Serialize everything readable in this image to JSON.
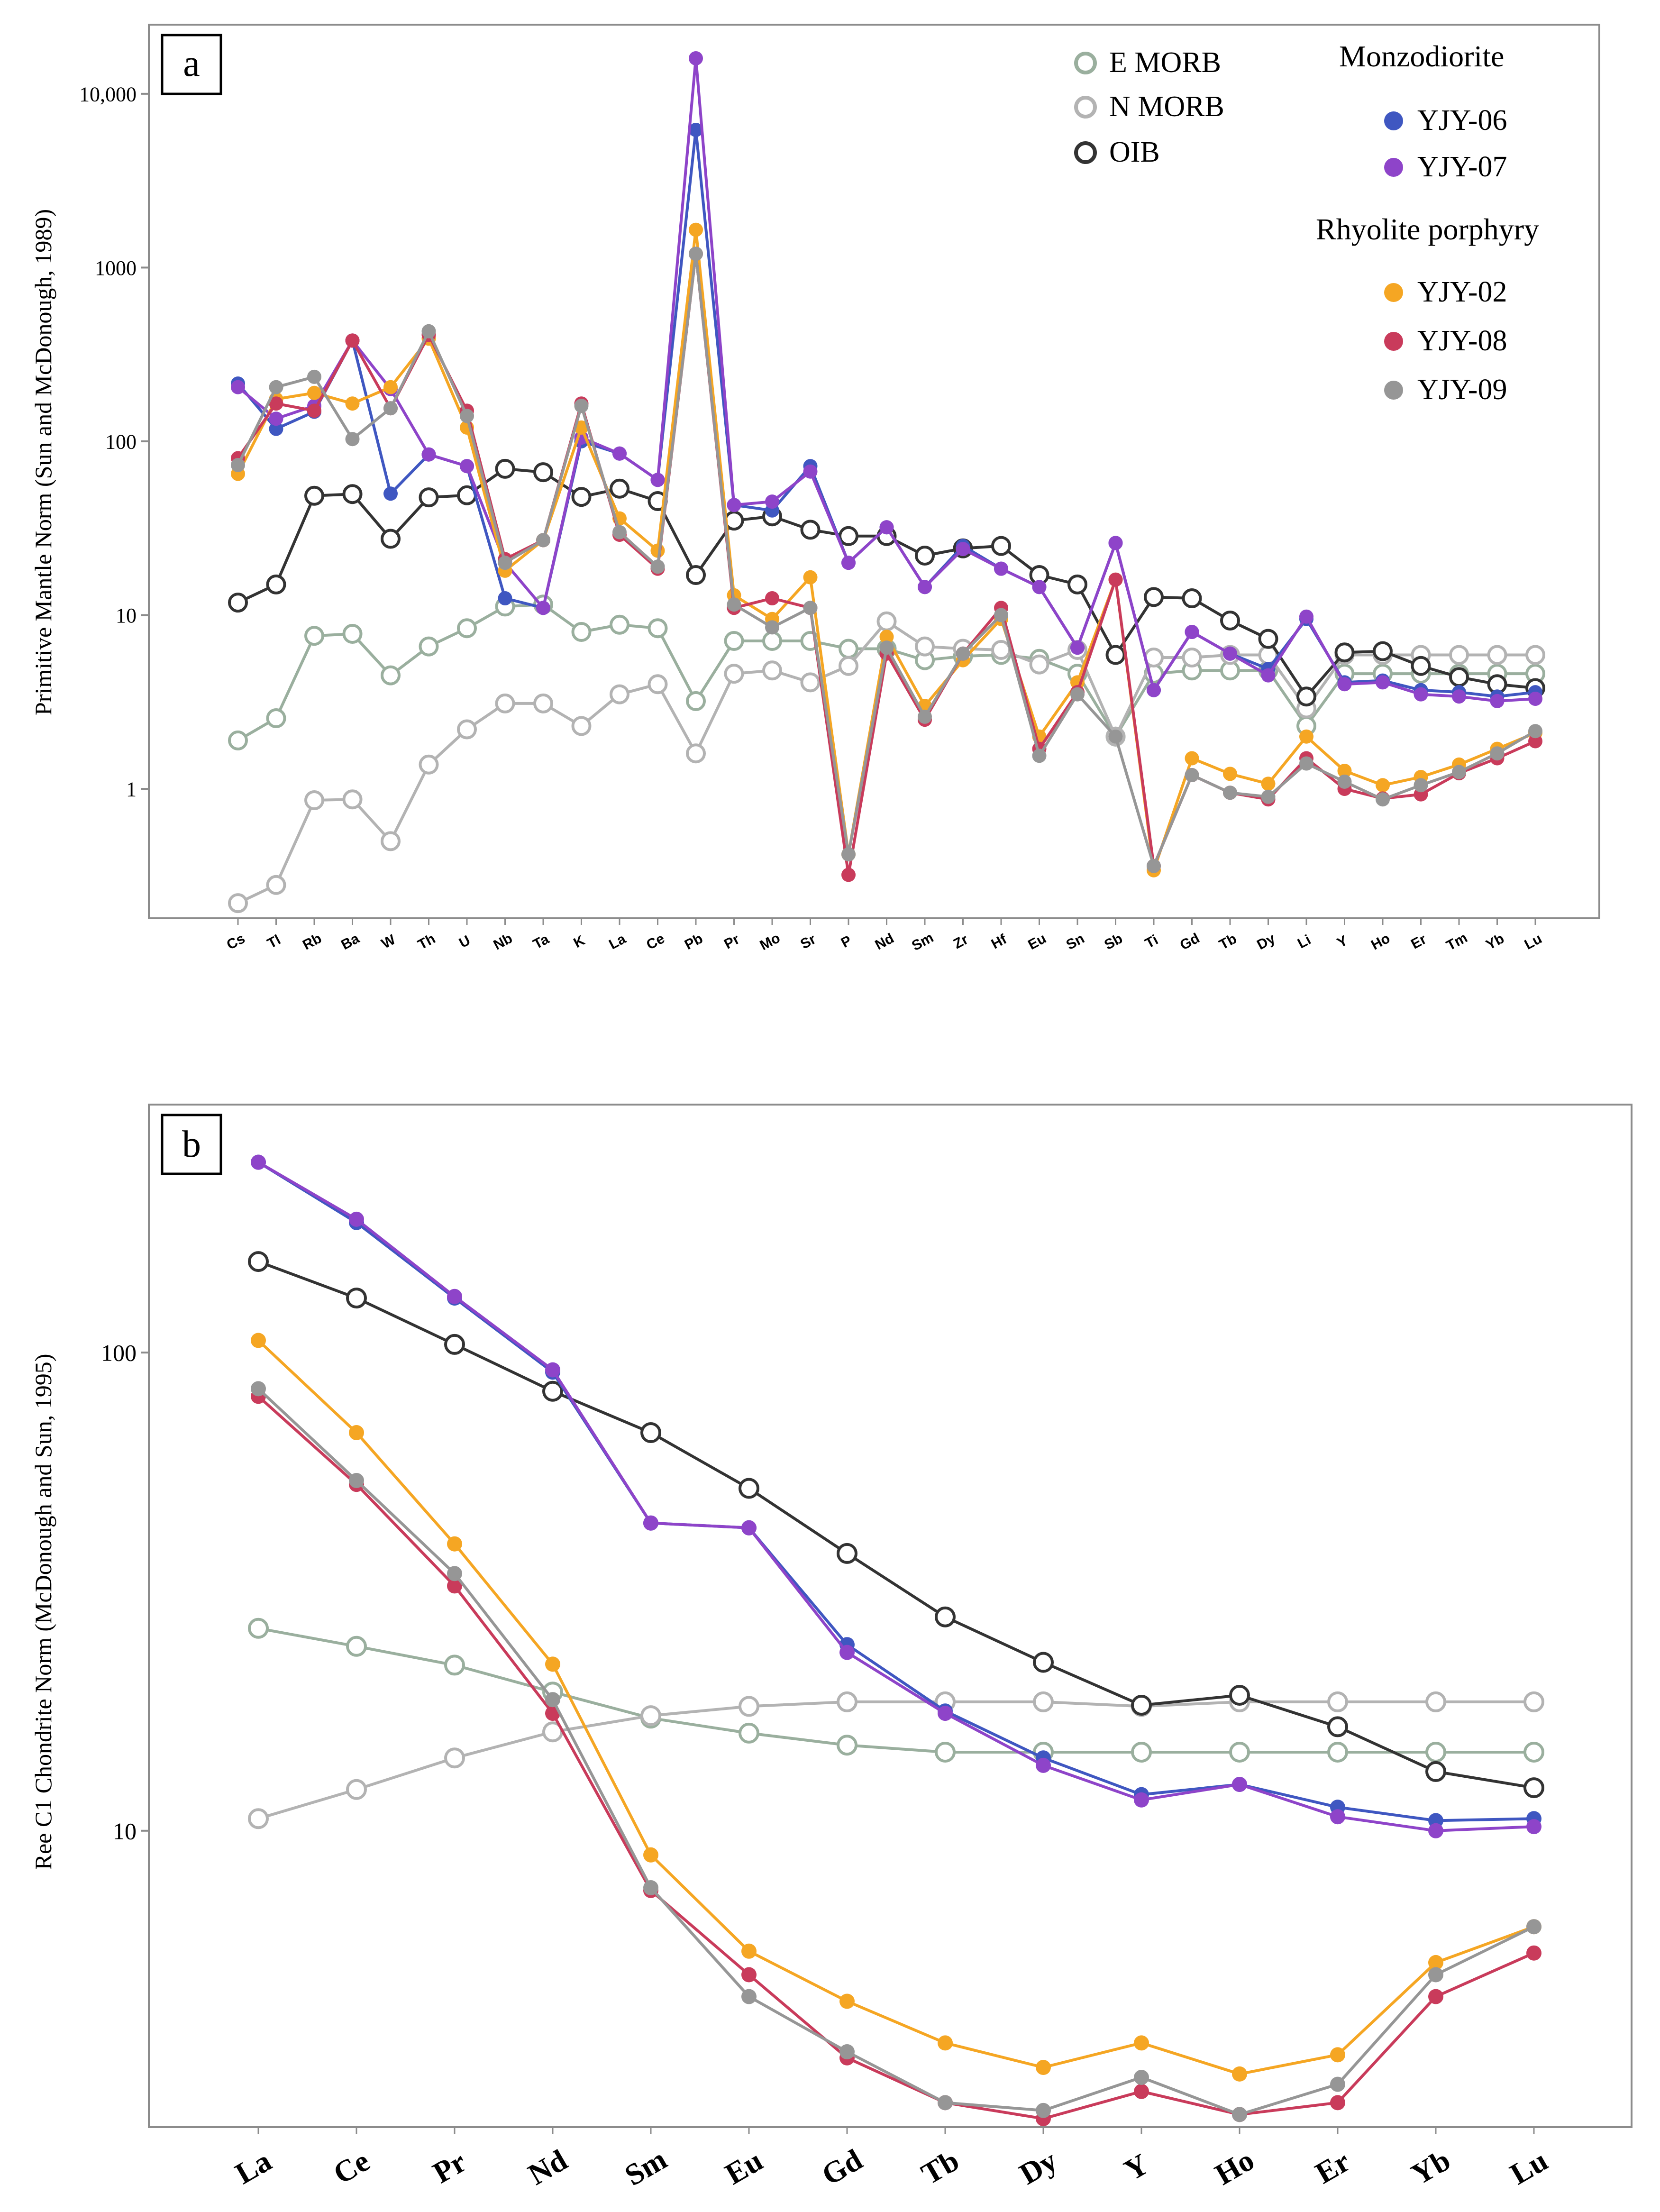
{
  "chart_data": [
    {
      "type": "line",
      "panel_label": "a",
      "title": "",
      "xlabel": "",
      "ylabel": "Primitive Mantle Norm (Sun and McDonough, 1989)",
      "yscale": "log",
      "ylim": [
        0.18,
        25000
      ],
      "yticks": [
        {
          "value": 1,
          "label": "1"
        },
        {
          "value": 10,
          "label": "10"
        },
        {
          "value": 100,
          "label": "100"
        },
        {
          "value": 1000,
          "label": "1000"
        },
        {
          "value": 10000,
          "label": "10,000"
        }
      ],
      "grid": false,
      "legend_position": "top-right",
      "categories": [
        "Cs",
        "Tl",
        "Rb",
        "Ba",
        "W",
        "Th",
        "U",
        "Nb",
        "Ta",
        "K",
        "La",
        "Ce",
        "Pb",
        "Pr",
        "Mo",
        "Sr",
        "P",
        "Nd",
        "Sm",
        "Zr",
        "Hf",
        "Eu",
        "Sn",
        "Sb",
        "Ti",
        "Gd",
        "Tb",
        "Dy",
        "Li",
        "Y",
        "Ho",
        "Er",
        "Tm",
        "Yb",
        "Lu"
      ],
      "legend": {
        "reference": [
          "E MORB",
          "N MORB",
          "OIB"
        ],
        "groups": [
          {
            "title": "Monzodiorite",
            "items": [
              "YJY-06",
              "YJY-07"
            ]
          },
          {
            "title": "Rhyolite porphyry",
            "items": [
              "YJY-02",
              "YJY-08",
              "YJY-09"
            ]
          }
        ]
      },
      "series": [
        {
          "name": "E MORB",
          "color": "#9aaf9e",
          "marker": "open",
          "values": [
            1.9,
            2.55,
            7.6,
            7.8,
            4.5,
            6.6,
            8.4,
            11.2,
            11.5,
            8.0,
            8.8,
            8.4,
            3.2,
            7.1,
            7.1,
            7.1,
            6.4,
            6.4,
            5.5,
            5.8,
            5.9,
            5.6,
            4.6,
            2.0,
            4.6,
            4.8,
            4.8,
            4.8,
            2.3,
            4.6,
            4.6,
            4.6,
            4.6,
            4.6,
            4.6
          ]
        },
        {
          "name": "N MORB",
          "color": "#b3b3b3",
          "marker": "open",
          "values": [
            0.22,
            0.28,
            0.86,
            0.87,
            0.5,
            1.38,
            2.2,
            3.1,
            3.1,
            2.3,
            3.5,
            4.0,
            1.6,
            4.6,
            4.8,
            4.1,
            5.1,
            9.2,
            6.6,
            6.4,
            6.3,
            5.2,
            6.3,
            2.0,
            5.7,
            5.7,
            5.9,
            5.9,
            2.9,
            5.9,
            5.9,
            5.9,
            5.9,
            5.9,
            5.9
          ]
        },
        {
          "name": "OIB",
          "color": "#333333",
          "marker": "open",
          "values": [
            11.8,
            15.0,
            48.6,
            49.7,
            27.5,
            47.6,
            48.9,
            69.5,
            66.4,
            47.9,
            53.4,
            45.3,
            17.0,
            35.0,
            37.0,
            31.0,
            28.5,
            28.5,
            22.0,
            24.2,
            25.0,
            17.0,
            15.0,
            5.9,
            12.7,
            12.5,
            9.3,
            7.3,
            3.4,
            6.1,
            6.2,
            5.1,
            4.4,
            4.0,
            3.8
          ]
        },
        {
          "name": "YJY-06",
          "color": "#3f57c1",
          "marker": "filled",
          "values": [
            215,
            118,
            148,
            380,
            50,
            84,
            72,
            12.5,
            11,
            100,
            85,
            60,
            6200,
            43,
            40,
            72,
            20,
            32,
            14.5,
            25,
            18.5,
            14.5,
            6.5,
            26,
            3.7,
            8.0,
            6.0,
            4.9,
            9.5,
            4.1,
            4.2,
            3.7,
            3.6,
            3.4,
            3.6
          ]
        },
        {
          "name": "YJY-07",
          "color": "#8e44c9",
          "marker": "filled",
          "values": [
            205,
            135,
            160,
            380,
            200,
            84,
            72,
            20,
            11,
            105,
            85,
            60,
            16000,
            43,
            45,
            67,
            20,
            32,
            14.5,
            24,
            18.5,
            14.5,
            6.5,
            26,
            3.7,
            8.0,
            6.0,
            4.5,
            9.8,
            4.0,
            4.1,
            3.5,
            3.4,
            3.2,
            3.3
          ]
        },
        {
          "name": "YJY-02",
          "color": "#f5a623",
          "marker": "filled",
          "values": [
            65,
            175,
            190,
            165,
            205,
            390,
            120,
            18,
            27,
            120,
            36,
            23.5,
            1650,
            13,
            9.5,
            16.5,
            0.42,
            7.5,
            3.0,
            5.5,
            9.5,
            2.0,
            4.1,
            16,
            0.34,
            1.5,
            1.22,
            1.07,
            2.0,
            1.27,
            1.05,
            1.17,
            1.38,
            1.7,
            2.1
          ]
        },
        {
          "name": "YJY-08",
          "color": "#c93b5b",
          "marker": "filled",
          "values": [
            80,
            165,
            150,
            380,
            155,
            410,
            150,
            21,
            27,
            165,
            29,
            18.5,
            1200,
            11,
            12.5,
            11,
            0.32,
            6.0,
            2.5,
            6.0,
            11,
            1.7,
            3.6,
            16,
            0.36,
            1.2,
            0.95,
            0.87,
            1.5,
            1.0,
            0.88,
            0.93,
            1.23,
            1.5,
            1.88
          ]
        },
        {
          "name": "YJY-09",
          "color": "#969696",
          "marker": "filled",
          "values": [
            73,
            205,
            235,
            103,
            155,
            430,
            140,
            20,
            27,
            160,
            30,
            19,
            1200,
            11.5,
            8.5,
            11,
            0.42,
            6.5,
            2.6,
            6.0,
            10,
            1.55,
            3.5,
            2.0,
            0.36,
            1.2,
            0.95,
            0.9,
            1.4,
            1.1,
            0.87,
            1.05,
            1.25,
            1.6,
            2.15
          ]
        }
      ]
    },
    {
      "type": "line",
      "panel_label": "b",
      "title": "",
      "xlabel": "",
      "ylabel": "Ree C1 Chondrite Norm (McDonough and Sun, 1995)",
      "yscale": "log",
      "ylim": [
        2.4,
        330
      ],
      "yticks": [
        {
          "value": 10,
          "label": "10"
        },
        {
          "value": 100,
          "label": "100"
        }
      ],
      "grid": false,
      "categories": [
        "La",
        "Ce",
        "Pr",
        "Nd",
        "Sm",
        "Eu",
        "Gd",
        "Tb",
        "Dy",
        "Y",
        "Ho",
        "Er",
        "Yb",
        "Lu"
      ],
      "series": [
        {
          "name": "E MORB",
          "color": "#9aaf9e",
          "marker": "open",
          "values": [
            26.5,
            24.3,
            22.2,
            19.5,
            17.2,
            16.0,
            15.1,
            14.6,
            14.6,
            14.6,
            14.6,
            14.6,
            14.6,
            14.6
          ]
        },
        {
          "name": "N MORB",
          "color": "#b3b3b3",
          "marker": "open",
          "values": [
            10.6,
            12.2,
            14.2,
            16.1,
            17.4,
            18.2,
            18.6,
            18.6,
            18.6,
            18.2,
            18.6,
            18.6,
            18.6,
            18.6
          ]
        },
        {
          "name": "OIB",
          "color": "#333333",
          "marker": "open",
          "values": [
            155,
            130,
            104,
            83,
            68,
            52,
            38,
            28,
            22.5,
            18.3,
            19.2,
            16.5,
            13.3,
            12.3
          ]
        },
        {
          "name": "YJY-06",
          "color": "#3f57c1",
          "marker": "filled",
          "values": [
            250,
            187,
            130,
            91,
            44,
            43,
            24.5,
            17.8,
            14.2,
            11.9,
            12.5,
            11.2,
            10.5,
            10.6
          ]
        },
        {
          "name": "YJY-07",
          "color": "#8e44c9",
          "marker": "filled",
          "values": [
            250,
            190,
            131,
            92,
            44,
            43,
            23.6,
            17.6,
            13.7,
            11.6,
            12.5,
            10.7,
            10.0,
            10.2
          ]
        },
        {
          "name": "YJY-02",
          "color": "#f5a623",
          "marker": "filled",
          "values": [
            106,
            68,
            39.8,
            22.3,
            8.9,
            5.6,
            4.4,
            3.6,
            3.2,
            3.6,
            3.1,
            3.4,
            5.3,
            6.3
          ]
        },
        {
          "name": "YJY-08",
          "color": "#c93b5b",
          "marker": "filled",
          "values": [
            81,
            53,
            32.5,
            17.6,
            7.5,
            5.0,
            3.35,
            2.7,
            2.5,
            2.85,
            2.55,
            2.7,
            4.5,
            5.55
          ]
        },
        {
          "name": "YJY-09",
          "color": "#969696",
          "marker": "filled",
          "values": [
            84,
            54,
            34.5,
            18.8,
            7.6,
            4.5,
            3.45,
            2.7,
            2.6,
            3.05,
            2.55,
            2.95,
            5.0,
            6.3
          ]
        }
      ]
    }
  ]
}
